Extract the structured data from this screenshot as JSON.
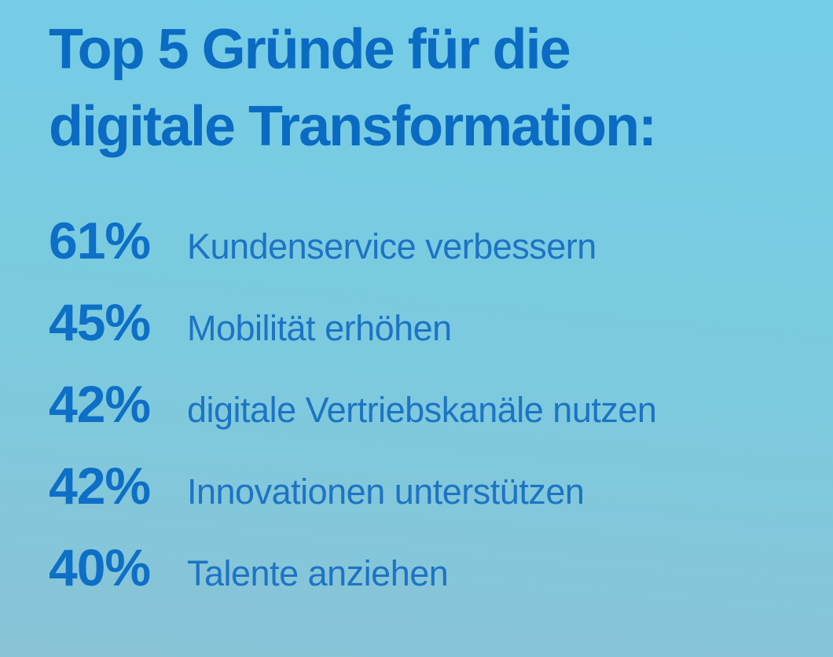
{
  "title": {
    "line1": "Top 5 Gründe für die",
    "line2": "digitale Transformation:"
  },
  "list": {
    "items": [
      {
        "value": "61%",
        "label": "Kundenservice verbessern"
      },
      {
        "value": "45%",
        "label": "Mobilität erhöhen"
      },
      {
        "value": "42%",
        "label": "digitale Vertriebskanäle nutzen"
      },
      {
        "value": "42%",
        "label": "Innovationen unterstützen"
      },
      {
        "value": "40%",
        "label": "Talente anziehen"
      }
    ]
  },
  "colors": {
    "bg_top": "#73cde7",
    "bg_bottom": "#8ac3d6",
    "title_text": "#0b6bc3",
    "value_text": "#0d6fc6",
    "label_text": "#1d74c4"
  },
  "chart_data": {
    "type": "table",
    "title": "Top 5 Gründe für die digitale Transformation:",
    "categories": [
      "Kundenservice verbessern",
      "Mobilität erhöhen",
      "digitale Vertriebskanäle nutzen",
      "Innovationen unterstützen",
      "Talente anziehen"
    ],
    "values": [
      61,
      45,
      42,
      42,
      40
    ],
    "unit": "%",
    "legend_position": "none",
    "grid": false
  }
}
